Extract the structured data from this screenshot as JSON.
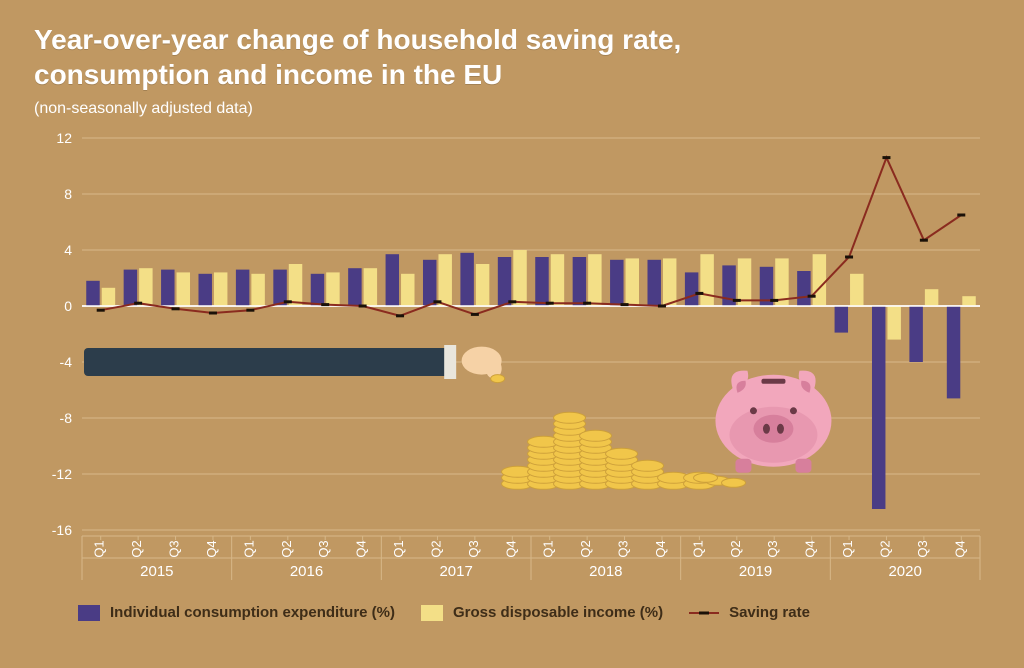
{
  "title_line1": "Year-over-year change of household saving rate,",
  "title_line2": "consumption and income in the EU",
  "subtitle": "(non-seasonally adjusted data)",
  "chart": {
    "type": "grouped-bar+line",
    "background_color": "#c09862",
    "grid_color": "#d7b889",
    "axis_color": "#ffffff",
    "ylim": [
      -16,
      12
    ],
    "ytick_step": 4,
    "yticks": [
      -16,
      -12,
      -8,
      -4,
      0,
      4,
      8,
      12
    ],
    "years": [
      "2015",
      "2016",
      "2017",
      "2018",
      "2019",
      "2020"
    ],
    "quarters": [
      "Q1",
      "Q2",
      "Q3",
      "Q4"
    ],
    "series": {
      "consumption": {
        "label": "Individual consumption expenditure (%)",
        "color": "#4a3c85",
        "values": [
          1.8,
          2.6,
          2.6,
          2.3,
          2.6,
          2.6,
          2.3,
          2.7,
          3.7,
          3.3,
          3.8,
          3.5,
          3.5,
          3.5,
          3.3,
          3.3,
          2.4,
          2.9,
          2.8,
          2.5,
          -1.9,
          -14.5,
          -4.0,
          -6.6
        ],
        "bar_width_ratio": 0.36
      },
      "income": {
        "label": "Gross disposable income (%)",
        "color": "#f3df87",
        "values": [
          1.3,
          2.7,
          2.4,
          2.4,
          2.3,
          3.0,
          2.4,
          2.7,
          2.3,
          3.7,
          3.0,
          4.0,
          3.7,
          3.7,
          3.4,
          3.4,
          3.7,
          3.4,
          3.4,
          3.7,
          2.3,
          -2.4,
          1.2,
          0.7
        ],
        "bar_width_ratio": 0.36
      },
      "saving_rate": {
        "label": "Saving rate",
        "line_color": "#8a2b1f",
        "marker_color": "#1a1108",
        "line_width": 2,
        "marker_w": 8,
        "marker_h": 3,
        "values": [
          -0.3,
          0.2,
          -0.2,
          -0.5,
          -0.3,
          0.3,
          0.1,
          0.0,
          -0.7,
          0.3,
          -0.6,
          0.3,
          0.2,
          0.2,
          0.1,
          0.0,
          0.9,
          0.4,
          0.4,
          0.7,
          3.5,
          10.6,
          4.7,
          6.5
        ]
      }
    }
  },
  "legend": {
    "items": [
      {
        "key": "consumption",
        "label": "Individual consumption expenditure (%)"
      },
      {
        "key": "income",
        "label": "Gross disposable income (%)"
      },
      {
        "key": "saving_rate",
        "label": "Saving rate"
      }
    ]
  },
  "illustration": {
    "arm_color": "#2c3d4b",
    "skin_color": "#f6d2a6",
    "coin_color": "#f1c64a",
    "coin_shadow": "#cda03a",
    "pig_body": "#f2a7bc",
    "pig_dark": "#d77f9c",
    "pig_slot": "#6b3a47"
  }
}
